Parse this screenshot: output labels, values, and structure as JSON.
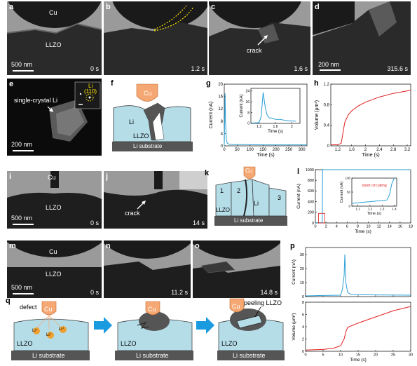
{
  "labels": {
    "a": "a",
    "b": "b",
    "c": "c",
    "d": "d",
    "e": "e",
    "f": "f",
    "g": "g",
    "h": "h",
    "i": "i",
    "j": "j",
    "k": "k",
    "l": "l",
    "m": "m",
    "n": "n",
    "o": "o",
    "p": "p",
    "q": "q"
  },
  "text": {
    "cu": "Cu",
    "llzo": "LLZO",
    "li": "Li",
    "li_substrate": "Li substrate",
    "sb500": "500 nm",
    "sb200": "200 nm",
    "t_a": "0 s",
    "t_b": "1.2 s",
    "t_c": "1.6 s",
    "t_d": "315.6 s",
    "t_i": "0 s",
    "t_j": "14 s",
    "t_m": "0 s",
    "t_n": "11.2 s",
    "t_o": "14.8 s",
    "crack": "crack",
    "single_crystal": "single-crystal Li",
    "li110_1": "Li",
    "li110_2": "(110)",
    "defect": "defect",
    "li_ion": "Li⁺",
    "peeling": "peeling LLZO",
    "short": "short circuiting",
    "k1": "1",
    "k2": "2",
    "k3": "3"
  },
  "chart_data": [
    {
      "id": "g",
      "type": "line",
      "ylabel": "Current (nA)",
      "xlabel": "Time (s)",
      "xlim": [
        0,
        320
      ],
      "ylim": [
        0,
        20
      ],
      "xticks": [
        0,
        50,
        100,
        150,
        200,
        250,
        300
      ],
      "yticks": [
        0,
        4,
        8,
        12,
        16,
        20
      ],
      "x": [
        0,
        3,
        5,
        8,
        12,
        20,
        40,
        80,
        150,
        250,
        320
      ],
      "y": [
        0,
        17,
        8,
        2,
        0.8,
        0.5,
        0.4,
        0.4,
        0.3,
        0.3,
        0.3
      ],
      "inset": {
        "xlim": [
          1.0,
          2.2
        ],
        "ylim": [
          0,
          26
        ],
        "xticks": [
          1.2,
          1.6,
          2.0
        ],
        "yticks": [
          0,
          8,
          16,
          24
        ],
        "xlabel": "Time (s)",
        "ylabel": "Current (nA)",
        "x": [
          1.0,
          1.1,
          1.2,
          1.25,
          1.3,
          1.35,
          1.4,
          1.45,
          1.5,
          1.6,
          1.7,
          1.8,
          1.9,
          2.0,
          2.1
        ],
        "y": [
          0.3,
          0.4,
          0.6,
          5,
          23,
          12,
          6,
          4,
          4,
          3,
          3,
          2.5,
          2,
          1.8,
          1.6
        ]
      }
    },
    {
      "id": "h",
      "type": "line",
      "ylabel": "Volume (μm³)",
      "xlabel": "Time (s)",
      "xlim": [
        1.0,
        3.3
      ],
      "ylim": [
        0,
        1.2
      ],
      "xticks": [
        1.2,
        1.6,
        2.0,
        2.4,
        2.8,
        3.2
      ],
      "yticks": [
        0.0,
        0.4,
        0.8,
        1.2
      ],
      "x": [
        1.0,
        1.2,
        1.3,
        1.35,
        1.4,
        1.5,
        1.6,
        1.8,
        2.0,
        2.4,
        2.8,
        3.3
      ],
      "y": [
        0.02,
        0.02,
        0.05,
        0.25,
        0.45,
        0.6,
        0.68,
        0.78,
        0.85,
        0.95,
        1.02,
        1.08
      ]
    },
    {
      "id": "l",
      "type": "line",
      "ylabel": "Current (nA)",
      "xlabel": "Time (s)",
      "xlim": [
        0,
        18
      ],
      "ylim": [
        0,
        1000
      ],
      "xticks": [
        0,
        2,
        4,
        6,
        8,
        10,
        12,
        14,
        16,
        18
      ],
      "yticks": [
        0,
        200,
        400,
        600,
        800,
        1000
      ],
      "x": [
        0,
        1.2,
        1.3,
        1.35,
        18
      ],
      "y": [
        5,
        5,
        10,
        1000,
        1000
      ],
      "inset": {
        "xlim": [
          1.05,
          1.42
        ],
        "ylim": [
          0,
          100
        ],
        "xticks": [
          1.1,
          1.2,
          1.3,
          1.4
        ],
        "yticks": [
          0,
          50,
          100
        ],
        "xlabel": "Time (s)",
        "ylabel": "Current (nA)",
        "x": [
          1.05,
          1.1,
          1.15,
          1.2,
          1.25,
          1.3,
          1.34,
          1.36,
          1.38,
          1.4
        ],
        "y": [
          10,
          12,
          14,
          16,
          18,
          20,
          22,
          40,
          80,
          100
        ]
      }
    },
    {
      "id": "p_current",
      "type": "line",
      "ylabel": "Current (nA)",
      "xlim": [
        0,
        30
      ],
      "ylim": [
        0,
        35
      ],
      "xticks": [
        0,
        5,
        10,
        15,
        20,
        25,
        30
      ],
      "yticks": [
        0,
        10,
        20,
        30
      ],
      "x": [
        0,
        5,
        10,
        10.5,
        11,
        11.2,
        11.5,
        12,
        13,
        20,
        30
      ],
      "y": [
        0.5,
        0.8,
        1,
        5,
        15,
        30,
        10,
        3,
        1.5,
        1.2,
        1
      ]
    },
    {
      "id": "p_volume",
      "type": "line",
      "ylabel": "Volume (μm³)",
      "xlabel": "Time (s)",
      "xlim": [
        0,
        30
      ],
      "ylim": [
        0,
        8
      ],
      "xticks": [
        0,
        5,
        10,
        15,
        20,
        25,
        30
      ],
      "yticks": [
        0,
        2,
        4,
        6,
        8
      ],
      "x": [
        0,
        5,
        8,
        10,
        11,
        11.5,
        12,
        15,
        20,
        25,
        30
      ],
      "y": [
        0.2,
        0.3,
        0.5,
        0.9,
        2,
        3.2,
        3.9,
        4.6,
        5.6,
        6.6,
        7.3
      ]
    }
  ]
}
